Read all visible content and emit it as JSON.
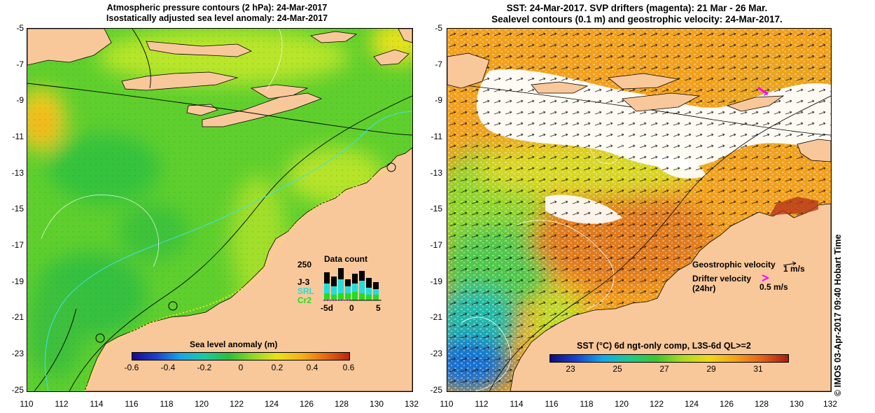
{
  "left_panel": {
    "title_line1": "Atmospheric pressure contours (2 hPa): 24-Mar-2017",
    "title_line2": "Isostatically adjusted sea level anomaly: 24-Mar-2017",
    "colorbar_label": "Sea level anomaly (m)",
    "colorbar_ticks": [
      "-0.6",
      "-0.4",
      "-0.2",
      "0",
      "0.2",
      "0.4",
      "0.6"
    ],
    "inset": {
      "title": "Data count",
      "max_label": "250",
      "series": [
        {
          "name": "J-3",
          "color": "#000000"
        },
        {
          "name": "SRL",
          "color": "#22dddd"
        },
        {
          "name": "Cr2",
          "color": "#22dd22"
        }
      ],
      "x_ticks": [
        "-5d",
        "0",
        "5"
      ]
    }
  },
  "right_panel": {
    "title_line1": "SST: 24-Mar-2017. SVP drifters (magenta): 21 Mar - 26 Mar.",
    "title_line2": "Sealevel contours (0.1 m) and geostrophic velocity: 24-Mar-2017.",
    "geo_velocity_label": "Geostrophic velocity",
    "geo_velocity_unit": "1 m/s",
    "drifter_label_line1": "Drifter velocity",
    "drifter_label_line2": "(24hr)",
    "drifter_unit": "0.5 m/s",
    "colorbar_label": "SST (°C) 6d ngt-only comp, L3S-6d QL>=2",
    "colorbar_ticks": [
      "23",
      "25",
      "27",
      "29",
      "31"
    ]
  },
  "axes": {
    "y_ticks": [
      "-5",
      "-7",
      "-9",
      "-11",
      "-13",
      "-15",
      "-17",
      "-19",
      "-21",
      "-23",
      "-25"
    ],
    "x_ticks": [
      "110",
      "112",
      "114",
      "116",
      "118",
      "120",
      "122",
      "124",
      "126",
      "128",
      "130",
      "132"
    ]
  },
  "credit": "© IMOS 03-Apr-2017 09:40 Hobart Time",
  "colors": {
    "land": "#f9c89a",
    "missing": "#ffffff",
    "drifter": "#ff00ff"
  }
}
